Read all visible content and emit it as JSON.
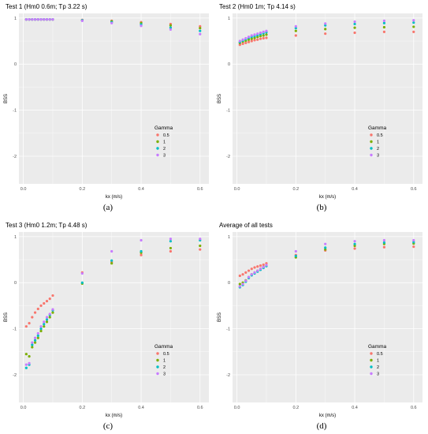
{
  "chart_data": [
    {
      "type": "scatter",
      "panel_label": "(a)",
      "title": "Test 1 (Hm0 0.6m; Tp 3.22 s)",
      "xlabel": "kx (m/s)",
      "ylabel": "BSS",
      "x_ticks": [
        "0.0",
        "0.2",
        "0.4",
        "0.6"
      ],
      "y_ticks": [
        "1",
        "0",
        "-1",
        "-2"
      ],
      "xlim": [
        -0.015,
        0.63
      ],
      "ylim": [
        -2.6,
        1.1
      ],
      "legend": {
        "title": "Gamma",
        "position": "bottom-right"
      },
      "x": [
        0.01,
        0.02,
        0.03,
        0.04,
        0.05,
        0.06,
        0.07,
        0.08,
        0.09,
        0.1,
        0.2,
        0.3,
        0.4,
        0.5,
        0.6
      ],
      "series": [
        {
          "name": "0.5",
          "color": "#F8766D",
          "values": [
            0.97,
            0.97,
            0.97,
            0.97,
            0.97,
            0.97,
            0.97,
            0.97,
            0.97,
            0.97,
            0.96,
            0.94,
            0.91,
            0.87,
            0.82
          ]
        },
        {
          "name": "1",
          "color": "#7CAE00",
          "values": [
            0.97,
            0.97,
            0.97,
            0.97,
            0.97,
            0.97,
            0.97,
            0.97,
            0.97,
            0.97,
            0.95,
            0.93,
            0.89,
            0.84,
            0.78
          ]
        },
        {
          "name": "2",
          "color": "#00BFC4",
          "values": [
            0.97,
            0.97,
            0.97,
            0.97,
            0.97,
            0.97,
            0.97,
            0.97,
            0.97,
            0.97,
            0.95,
            0.91,
            0.86,
            0.79,
            0.72
          ]
        },
        {
          "name": "3",
          "color": "#C77CFF",
          "values": [
            0.97,
            0.97,
            0.97,
            0.97,
            0.97,
            0.97,
            0.97,
            0.97,
            0.97,
            0.97,
            0.94,
            0.89,
            0.83,
            0.75,
            0.65
          ]
        }
      ]
    },
    {
      "type": "scatter",
      "panel_label": "(b)",
      "title": "Test 2 (Hm0 1m; Tp 4.14 s)",
      "xlabel": "kx (m/s)",
      "ylabel": "BSS",
      "x_ticks": [
        "0.0",
        "0.2",
        "0.4",
        "0.6"
      ],
      "y_ticks": [
        "1",
        "0",
        "-1",
        "-2"
      ],
      "xlim": [
        -0.015,
        0.63
      ],
      "ylim": [
        -2.6,
        1.1
      ],
      "legend": {
        "title": "Gamma",
        "position": "bottom-right"
      },
      "x": [
        0.01,
        0.02,
        0.03,
        0.04,
        0.05,
        0.06,
        0.07,
        0.08,
        0.09,
        0.1,
        0.2,
        0.3,
        0.4,
        0.5,
        0.6
      ],
      "series": [
        {
          "name": "0.5",
          "color": "#F8766D",
          "values": [
            0.42,
            0.44,
            0.46,
            0.48,
            0.5,
            0.52,
            0.53,
            0.55,
            0.56,
            0.57,
            0.62,
            0.66,
            0.68,
            0.7,
            0.7
          ]
        },
        {
          "name": "1",
          "color": "#7CAE00",
          "values": [
            0.46,
            0.49,
            0.51,
            0.53,
            0.55,
            0.57,
            0.59,
            0.61,
            0.62,
            0.64,
            0.72,
            0.76,
            0.79,
            0.8,
            0.81
          ]
        },
        {
          "name": "2",
          "color": "#00BFC4",
          "values": [
            0.48,
            0.51,
            0.54,
            0.57,
            0.59,
            0.61,
            0.63,
            0.65,
            0.67,
            0.69,
            0.78,
            0.84,
            0.87,
            0.89,
            0.9
          ]
        },
        {
          "name": "3",
          "color": "#C77CFF",
          "values": [
            0.5,
            0.53,
            0.56,
            0.59,
            0.62,
            0.64,
            0.66,
            0.68,
            0.7,
            0.72,
            0.82,
            0.88,
            0.92,
            0.94,
            0.95
          ]
        }
      ]
    },
    {
      "type": "scatter",
      "panel_label": "(c)",
      "title": "Test 3 (Hm0 1.2m; Tp 4.48 s)",
      "xlabel": "kx (m/s)",
      "ylabel": "BSS",
      "x_ticks": [
        "0.0",
        "0.2",
        "0.4",
        "0.6"
      ],
      "y_ticks": [
        "1",
        "0",
        "-1",
        "-2"
      ],
      "xlim": [
        -0.015,
        0.63
      ],
      "ylim": [
        -2.6,
        1.1
      ],
      "legend": {
        "title": "Gamma",
        "position": "bottom-right"
      },
      "x": [
        0.01,
        0.02,
        0.03,
        0.04,
        0.05,
        0.06,
        0.07,
        0.08,
        0.09,
        0.1,
        0.2,
        0.3,
        0.4,
        0.5,
        0.6
      ],
      "series": [
        {
          "name": "0.5",
          "color": "#F8766D",
          "values": [
            -0.95,
            -0.88,
            -0.75,
            -0.65,
            -0.57,
            -0.5,
            -0.45,
            -0.4,
            -0.35,
            -0.28,
            0.22,
            0.45,
            0.6,
            0.68,
            0.72
          ]
        },
        {
          "name": "1",
          "color": "#7CAE00",
          "values": [
            -1.55,
            -1.6,
            -1.4,
            -1.3,
            -1.2,
            -1.05,
            -0.95,
            -0.85,
            -0.75,
            -0.65,
            -0.02,
            0.42,
            0.65,
            0.75,
            0.8
          ]
        },
        {
          "name": "2",
          "color": "#00BFC4",
          "values": [
            -1.85,
            -1.78,
            -1.35,
            -1.25,
            -1.15,
            -1.0,
            -0.9,
            -0.8,
            -0.7,
            -0.6,
            0.0,
            0.48,
            0.68,
            0.9,
            0.92
          ]
        },
        {
          "name": "3",
          "color": "#C77CFF",
          "values": [
            -1.78,
            -1.75,
            -1.3,
            -1.2,
            -1.1,
            -0.95,
            -0.85,
            -0.75,
            -0.68,
            -0.58,
            0.2,
            0.68,
            0.92,
            0.95,
            0.95
          ]
        }
      ]
    },
    {
      "type": "scatter",
      "panel_label": "(d)",
      "title": "Average of all tests",
      "xlabel": "kx (m/s)",
      "ylabel": "BSS",
      "x_ticks": [
        "0.0",
        "0.2",
        "0.4",
        "0.6"
      ],
      "y_ticks": [
        "1",
        "0",
        "-1",
        "-2"
      ],
      "xlim": [
        -0.015,
        0.63
      ],
      "ylim": [
        -2.6,
        1.1
      ],
      "legend": {
        "title": "Gamma",
        "position": "bottom-right"
      },
      "x": [
        0.01,
        0.02,
        0.03,
        0.04,
        0.05,
        0.06,
        0.07,
        0.08,
        0.09,
        0.1,
        0.2,
        0.3,
        0.4,
        0.5,
        0.6
      ],
      "series": [
        {
          "name": "0.5",
          "color": "#F8766D",
          "values": [
            0.15,
            0.18,
            0.22,
            0.26,
            0.3,
            0.33,
            0.35,
            0.37,
            0.39,
            0.42,
            0.6,
            0.7,
            0.74,
            0.77,
            0.78
          ]
        },
        {
          "name": "1",
          "color": "#7CAE00",
          "values": [
            -0.03,
            0.0,
            0.05,
            0.12,
            0.18,
            0.22,
            0.26,
            0.3,
            0.34,
            0.37,
            0.55,
            0.72,
            0.8,
            0.84,
            0.85
          ]
        },
        {
          "name": "2",
          "color": "#00BFC4",
          "values": [
            -0.1,
            -0.05,
            0.02,
            0.1,
            0.16,
            0.2,
            0.24,
            0.28,
            0.32,
            0.36,
            0.58,
            0.76,
            0.84,
            0.87,
            0.88
          ]
        },
        {
          "name": "3",
          "color": "#C77CFF",
          "values": [
            -0.08,
            -0.03,
            0.04,
            0.12,
            0.18,
            0.22,
            0.26,
            0.3,
            0.34,
            0.38,
            0.68,
            0.84,
            0.9,
            0.92,
            0.92
          ]
        }
      ]
    }
  ]
}
